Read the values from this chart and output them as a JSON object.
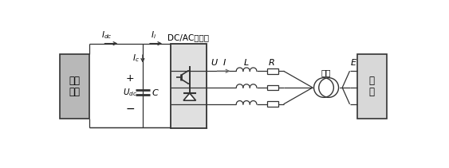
{
  "bg_color": "#ffffff",
  "line_color": "#333333",
  "fig_width": 5.63,
  "fig_height": 2.11,
  "dpi": 100,
  "pv_label": [
    "光伏",
    "阵列"
  ],
  "grid_label": [
    "电",
    "网"
  ],
  "dc_ac_label": "DC/AC逆变器",
  "xbian_label": "箱变",
  "label_U": "U",
  "label_I": "I",
  "label_L": "L",
  "label_R": "R",
  "label_E": "E",
  "label_Idc": "I_{dc}",
  "label_Ii": "I_i",
  "label_Ic": "I_c",
  "label_Udc": "U_{dc}",
  "label_C": "C"
}
